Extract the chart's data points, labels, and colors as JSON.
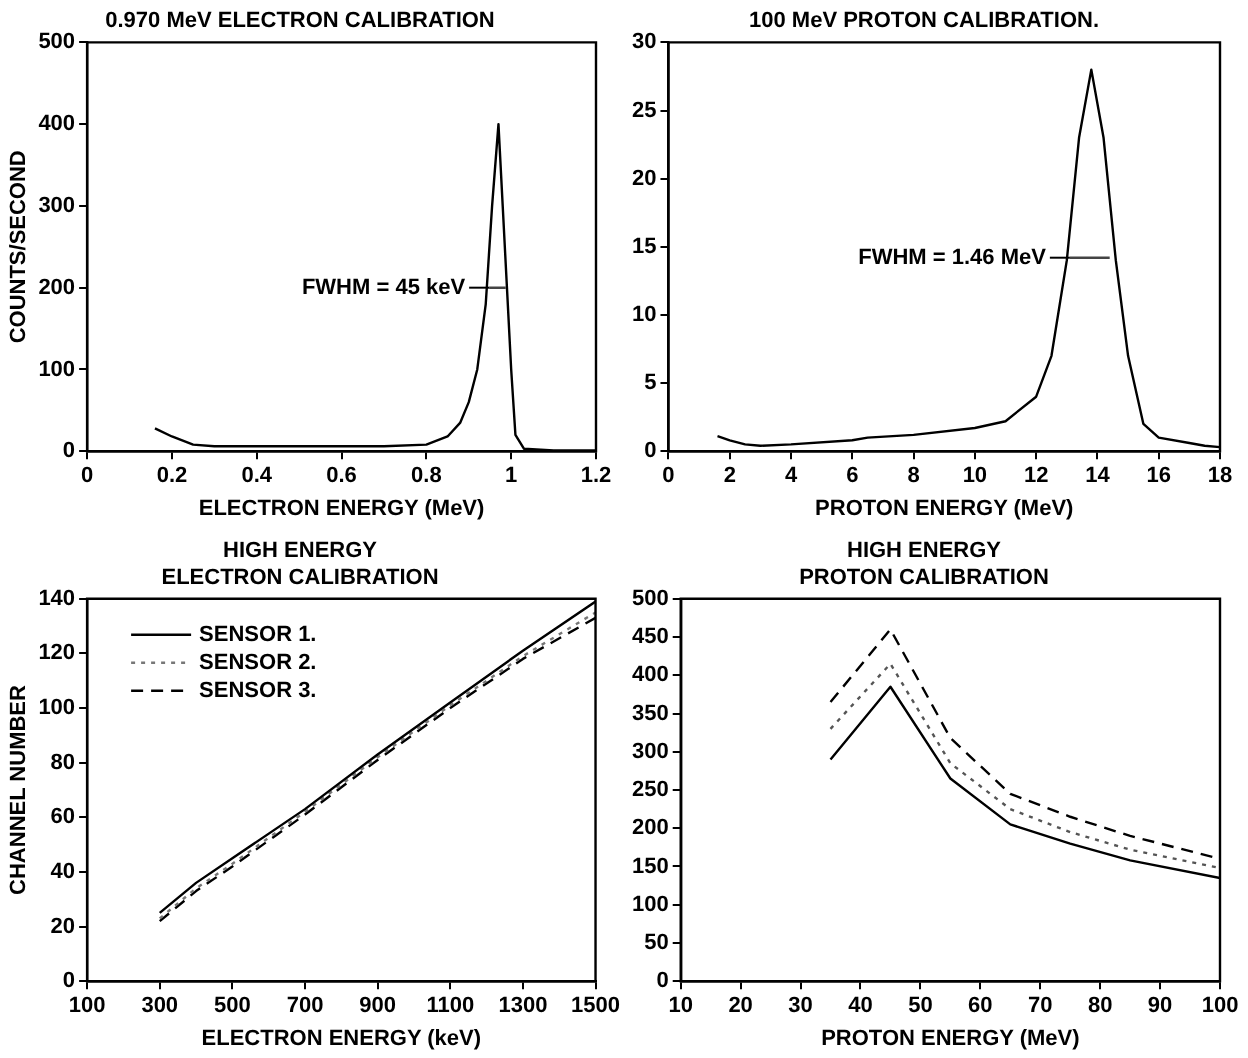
{
  "chart_data": [
    {
      "type": "line",
      "title": "0.970 MeV ELECTRON CALIBRATION",
      "xlabel": "ELECTRON ENERGY (MeV)",
      "ylabel": "COUNTS/SECOND",
      "xlim": [
        0,
        1.2
      ],
      "xticks": [
        0,
        0.2,
        0.4,
        0.6,
        0.8,
        1,
        1.2
      ],
      "ylim": [
        0,
        500
      ],
      "yticks": [
        0,
        100,
        200,
        300,
        400,
        500
      ],
      "grid": false,
      "legend": false,
      "marker": "none",
      "series": [
        {
          "color": "#000000",
          "line_style": "solid",
          "x": [
            0.16,
            0.2,
            0.25,
            0.3,
            0.4,
            0.6,
            0.7,
            0.8,
            0.85,
            0.88,
            0.9,
            0.92,
            0.94,
            0.955,
            0.97,
            0.98,
            0.99,
            1.0,
            1.01,
            1.03,
            1.1,
            1.2
          ],
          "values": [
            28,
            18,
            8,
            6,
            6,
            6,
            6,
            8,
            18,
            35,
            60,
            100,
            180,
            300,
            400,
            300,
            200,
            100,
            20,
            3,
            1,
            1
          ]
        },
        {
          "color": "#444444",
          "line_style": "solid",
          "x": [
            0.948,
            0.987
          ],
          "values": [
            200,
            200
          ]
        }
      ],
      "annotations": [
        {
          "text": "FWHM = 45 keV",
          "x": 0.948,
          "y": 200
        }
      ]
    },
    {
      "type": "line",
      "title": "100 MeV PROTON CALIBRATION.",
      "xlabel": "PROTON ENERGY (MeV)",
      "xlim": [
        0,
        18
      ],
      "xticks": [
        0,
        2,
        4,
        6,
        8,
        10,
        12,
        14,
        16,
        18
      ],
      "ylim": [
        0,
        30
      ],
      "yticks": [
        0,
        5,
        10,
        15,
        20,
        25,
        30
      ],
      "grid": false,
      "legend": false,
      "marker": "none",
      "series": [
        {
          "color": "#000000",
          "line_style": "solid",
          "x": [
            1.6,
            2,
            2.5,
            3,
            4,
            6,
            6.5,
            8,
            10,
            11,
            12,
            12.5,
            13,
            13.4,
            13.8,
            14.2,
            14.6,
            15,
            15.5,
            16,
            17,
            17.5,
            18
          ],
          "values": [
            1.1,
            0.8,
            0.5,
            0.4,
            0.5,
            0.8,
            1.0,
            1.2,
            1.7,
            2.2,
            4,
            7,
            14,
            23,
            28,
            23,
            14,
            7,
            2,
            1,
            0.6,
            0.4,
            0.3
          ]
        },
        {
          "color": "#444444",
          "line_style": "solid",
          "x": [
            13.1,
            14.4
          ],
          "values": [
            14.2,
            14.2
          ]
        }
      ],
      "annotations": [
        {
          "text": "FWHM = 1.46 MeV",
          "x": 13.1,
          "y": 14.2
        }
      ]
    },
    {
      "type": "line",
      "title": "HIGH ENERGY\nELECTRON CALIBRATION",
      "xlabel": "ELECTRON ENERGY (keV)",
      "ylabel": "CHANNEL NUMBER",
      "xlim": [
        100,
        1500
      ],
      "xticks": [
        100,
        300,
        500,
        700,
        900,
        1100,
        1300,
        1500
      ],
      "ylim": [
        0,
        140
      ],
      "yticks": [
        0,
        20,
        40,
        60,
        80,
        100,
        120,
        140
      ],
      "grid": false,
      "legend": "top left",
      "marker": "none",
      "series": [
        {
          "name": "SENSOR 1.",
          "color": "#000000",
          "line_style": "solid",
          "x": [
            300,
            400,
            500,
            700,
            900,
            1100,
            1300,
            1500
          ],
          "values": [
            25,
            36,
            45,
            63,
            83,
            102,
            121,
            139
          ]
        },
        {
          "name": "SENSOR 2.",
          "color": "#777777",
          "line_style": "dotted",
          "x": [
            300,
            400,
            500,
            700,
            900,
            1100,
            1300,
            1500
          ],
          "values": [
            23,
            34,
            43,
            62,
            82,
            101,
            119,
            135
          ]
        },
        {
          "name": "SENSOR 3.",
          "color": "#000000",
          "line_style": "dashed",
          "x": [
            300,
            400,
            500,
            700,
            900,
            1100,
            1300,
            1500
          ],
          "values": [
            22,
            33,
            42,
            61,
            81,
            100,
            118,
            133
          ]
        }
      ]
    },
    {
      "type": "line",
      "title": "HIGH ENERGY\nPROTON CALIBRATION",
      "xlabel": "PROTON ENERGY (MeV)",
      "xlim": [
        10,
        100
      ],
      "xticks": [
        10,
        20,
        30,
        40,
        50,
        60,
        70,
        80,
        90,
        100
      ],
      "ylim": [
        0,
        500
      ],
      "yticks": [
        0,
        50,
        100,
        150,
        200,
        250,
        300,
        350,
        400,
        450,
        500
      ],
      "grid": false,
      "legend": false,
      "marker": "none",
      "series": [
        {
          "color": "#000000",
          "line_style": "solid",
          "x": [
            35,
            45,
            55,
            65,
            75,
            85,
            100
          ],
          "values": [
            290,
            385,
            265,
            205,
            180,
            158,
            135
          ]
        },
        {
          "color": "#555555",
          "line_style": "dotted",
          "x": [
            35,
            45,
            55,
            65,
            75,
            85,
            100
          ],
          "values": [
            330,
            415,
            285,
            225,
            195,
            172,
            148
          ]
        },
        {
          "color": "#000000",
          "line_style": "dashed",
          "x": [
            35,
            45,
            55,
            65,
            75,
            85,
            100
          ],
          "values": [
            365,
            460,
            318,
            245,
            215,
            190,
            160
          ]
        }
      ]
    }
  ]
}
